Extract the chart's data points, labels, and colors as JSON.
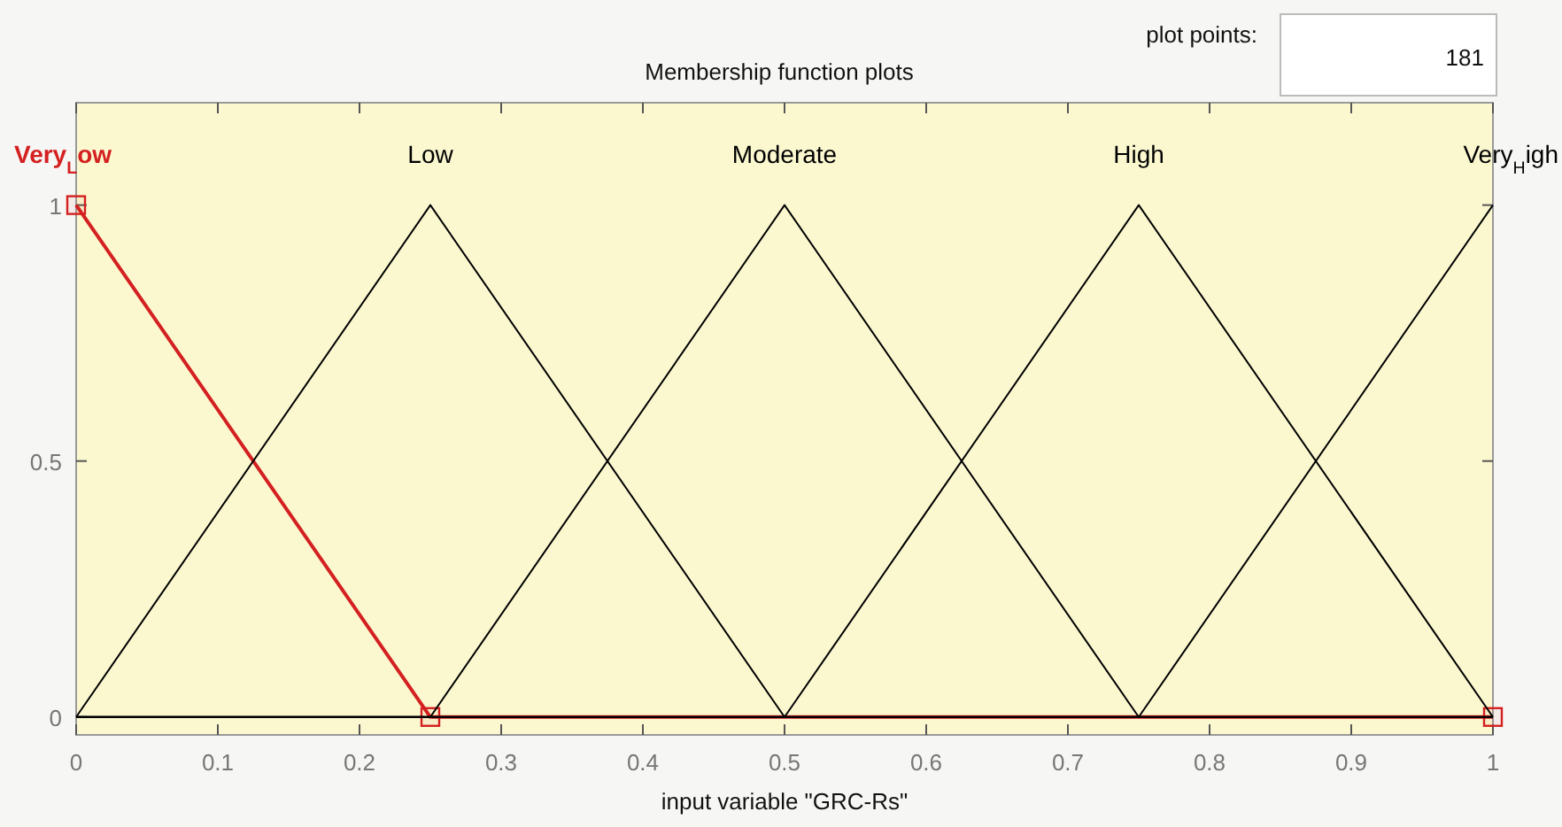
{
  "chart_data": {
    "type": "line",
    "title": "Membership function plots",
    "xlabel": "input variable \"GRC-Rs\"",
    "annotations": [
      "plot points:",
      "181"
    ],
    "xlim": [
      0,
      1
    ],
    "xticks": [
      0,
      0.1,
      0.2,
      0.3,
      0.4,
      0.5,
      0.6,
      0.7,
      0.8,
      0.9,
      1
    ],
    "ylim": [
      -0.035,
      1.2
    ],
    "yticks": [
      0,
      0.5,
      1
    ],
    "grid": false,
    "line_style": "solid",
    "marker": "none",
    "series": [
      {
        "name": "Very$_{L}$ow",
        "color": "#d42020",
        "x": [
          0,
          0.25,
          1
        ],
        "values": [
          1,
          0,
          0
        ],
        "marker": "square"
      },
      {
        "name": "Low",
        "color": "#000000",
        "x": [
          0,
          0.25,
          0.5,
          1
        ],
        "values": [
          0,
          1,
          0,
          0
        ]
      },
      {
        "name": "Moderate",
        "color": "#000000",
        "x": [
          0,
          0.25,
          0.5,
          0.75,
          1
        ],
        "values": [
          0,
          0,
          1,
          0,
          0
        ]
      },
      {
        "name": "High",
        "color": "#000000",
        "x": [
          0,
          0.5,
          0.75,
          1
        ],
        "values": [
          0,
          0,
          1,
          0
        ]
      },
      {
        "name": "Very$_{H}$igh",
        "color": "#000000",
        "x": [
          0,
          0.75,
          1
        ],
        "values": [
          0,
          0,
          1
        ]
      }
    ]
  }
}
